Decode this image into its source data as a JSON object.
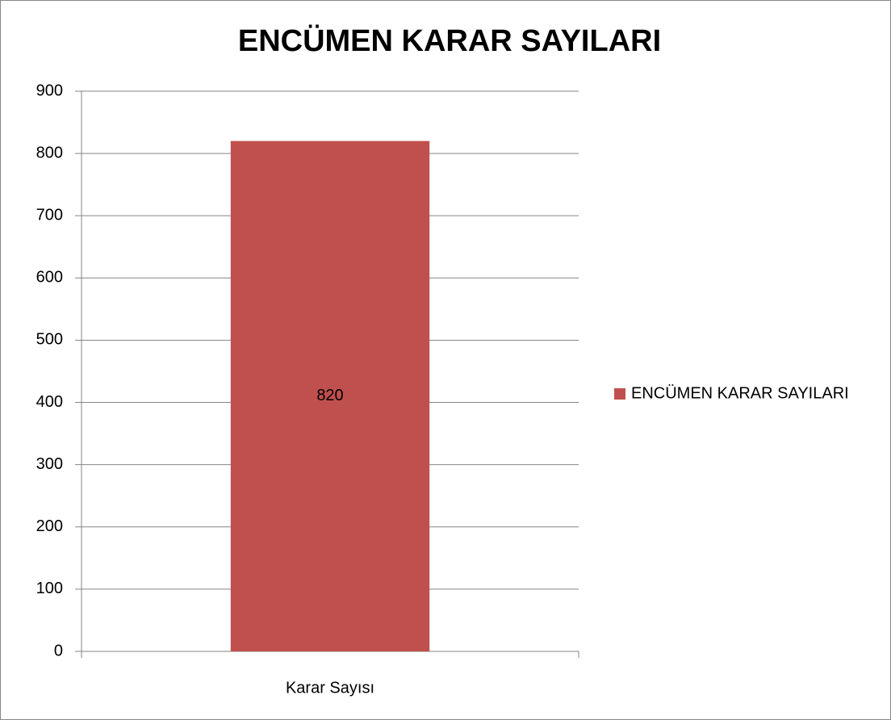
{
  "chart_data": {
    "type": "bar",
    "title": "ENCÜMEN KARAR SAYILARI",
    "categories": [
      "Karar Sayısı"
    ],
    "series": [
      {
        "name": "ENCÜMEN KARAR SAYILARI",
        "color": "#c0504d",
        "values": [
          820
        ]
      }
    ],
    "ylim": [
      0,
      900
    ],
    "yticks": [
      0,
      100,
      200,
      300,
      400,
      500,
      600,
      700,
      800,
      900
    ],
    "grid": true,
    "legend": "right",
    "data_labels": true
  }
}
